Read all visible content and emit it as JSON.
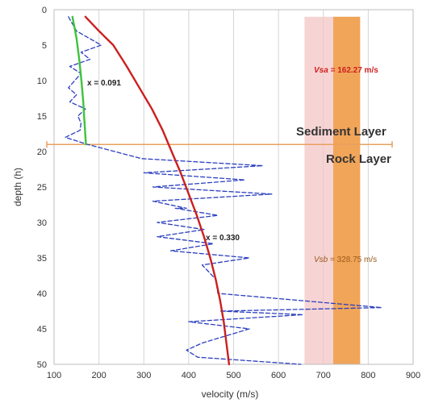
{
  "chart_data": {
    "type": "line",
    "xlabel": "velocity (m/s)",
    "ylabel": "depth (h)",
    "xlim": [
      100,
      900
    ],
    "ylim": [
      0,
      50
    ],
    "y_inverted": true,
    "x_ticks": [
      "100",
      "200",
      "300",
      "400",
      "500",
      "600",
      "700",
      "800",
      "900"
    ],
    "y_ticks": [
      "0",
      "5",
      "10",
      "15",
      "20",
      "25",
      "30",
      "35",
      "40",
      "45",
      "50"
    ],
    "grid": "vertical",
    "legend": "none",
    "colors": {
      "measured": "#2b3fbf",
      "fit_total": "#cc1f1f",
      "fit_sediment": "#3cc43c",
      "boundary": "#e8a060",
      "band_sa": "#f4c6c6",
      "band_sb": "#f0a050",
      "text_sa": "#cc1f1f",
      "text_sb": "#9a5a1a"
    },
    "series": [
      {
        "style": "dashed",
        "points": [
          [
            132,
            1
          ],
          [
            150,
            3
          ],
          [
            205,
            5
          ],
          [
            160,
            6
          ],
          [
            180,
            7
          ],
          [
            135,
            8
          ],
          [
            160,
            9
          ],
          [
            132,
            11
          ],
          [
            150,
            12
          ],
          [
            135,
            13
          ],
          [
            170,
            14
          ],
          [
            153,
            15
          ],
          [
            160,
            16
          ],
          [
            158,
            17
          ],
          [
            125,
            18
          ],
          [
            175,
            19
          ],
          [
            295,
            21
          ],
          [
            565,
            22
          ],
          [
            300,
            23
          ],
          [
            525,
            24
          ],
          [
            320,
            25
          ],
          [
            585,
            26
          ],
          [
            320,
            27
          ],
          [
            395,
            28
          ],
          [
            370,
            28
          ],
          [
            465,
            29
          ],
          [
            330,
            30
          ],
          [
            435,
            31
          ],
          [
            330,
            32
          ],
          [
            455,
            33
          ],
          [
            360,
            34
          ],
          [
            535,
            35
          ],
          [
            430,
            36
          ],
          [
            460,
            38
          ],
          [
            465,
            40
          ],
          [
            830,
            42
          ],
          [
            470,
            42.5
          ],
          [
            655,
            43
          ],
          [
            400,
            44
          ],
          [
            535,
            45
          ],
          [
            430,
            47
          ],
          [
            395,
            48
          ],
          [
            420,
            49
          ],
          [
            650,
            50
          ]
        ]
      },
      {
        "style": "solid",
        "label": "x = 0.330",
        "points": [
          [
            170,
            1
          ],
          [
            200,
            3
          ],
          [
            232,
            5
          ],
          [
            262,
            8
          ],
          [
            290,
            11
          ],
          [
            318,
            14
          ],
          [
            342,
            17
          ],
          [
            362,
            20
          ],
          [
            382,
            23
          ],
          [
            400,
            26
          ],
          [
            418,
            29
          ],
          [
            434,
            32
          ],
          [
            448,
            35
          ],
          [
            460,
            38
          ],
          [
            470,
            41
          ],
          [
            478,
            44
          ],
          [
            484,
            47
          ],
          [
            490,
            50
          ]
        ]
      },
      {
        "style": "solid",
        "label": "x = 0.091",
        "points": [
          [
            141,
            1
          ],
          [
            150,
            4
          ],
          [
            156,
            7
          ],
          [
            161,
            10
          ],
          [
            165,
            13
          ],
          [
            168,
            16
          ],
          [
            171,
            19
          ]
        ]
      }
    ],
    "boundary_depth": 19,
    "bands": [
      {
        "x_range": [
          658,
          722
        ],
        "y_range": [
          1,
          50
        ]
      },
      {
        "x_range": [
          722,
          782
        ],
        "y_range": [
          1,
          50
        ]
      }
    ],
    "annotations": {
      "x_sed": "x = 0.091",
      "x_rock": "x = 0.330",
      "vsa_symbol": "Vsa",
      "vsa_value": " = 162.27 m/s",
      "vsb_symbol": "Vsb",
      "vsb_value": " = 328.75 m/s",
      "sediment_layer": "Sediment Layer",
      "rock_layer": "Rock Layer"
    }
  }
}
